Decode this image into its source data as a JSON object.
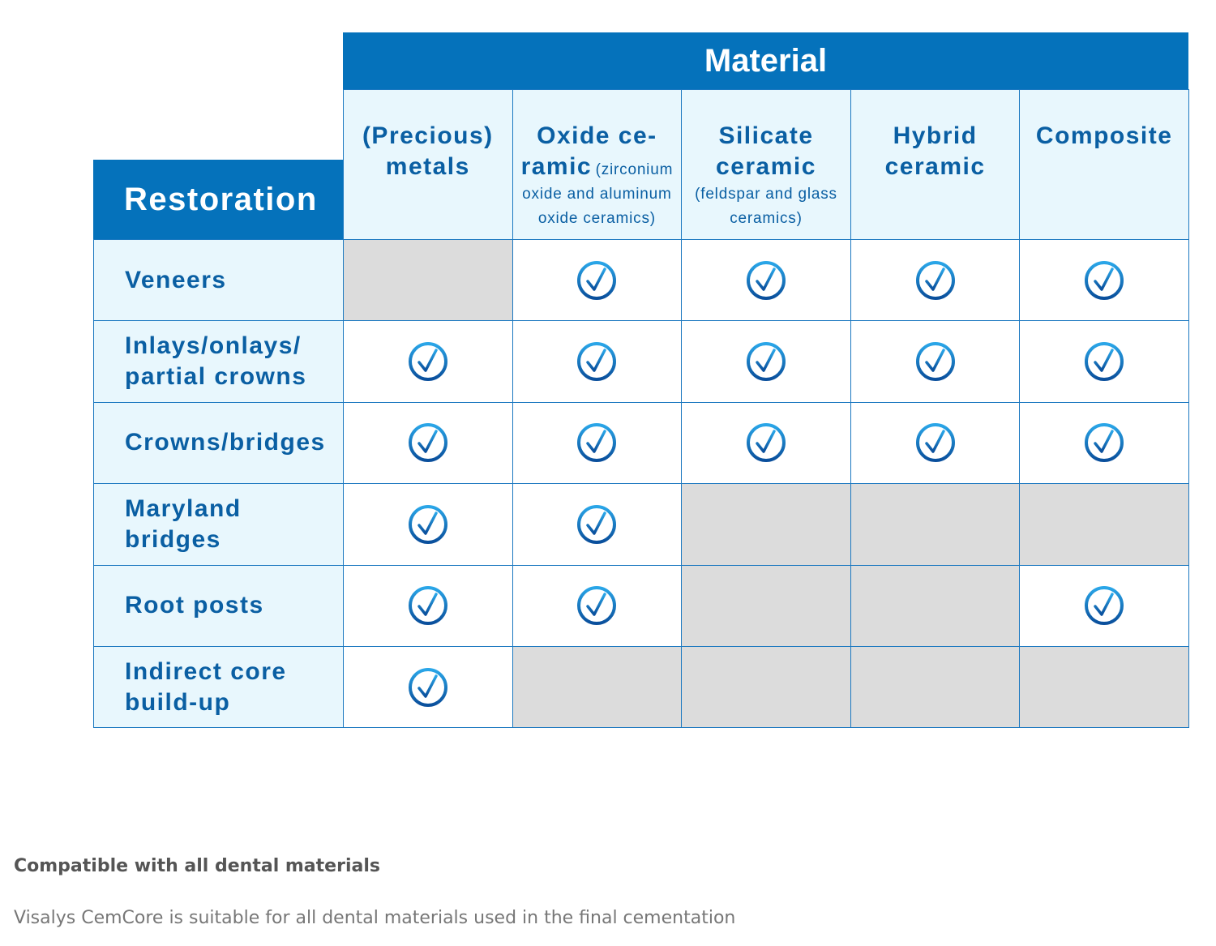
{
  "table": {
    "title": "Material",
    "row_header": "Restoration",
    "columns": [
      {
        "main": "(Precious)\nmetals"
      },
      {
        "main": "Oxide ce-\nramic",
        "sub": "(zirconium oxide and aluminum oxide ceramics)"
      },
      {
        "main": "Silicate\nceramic",
        "sub": "(feldspar and glass ceramics)"
      },
      {
        "main": "Hybrid\nceramic"
      },
      {
        "main": "Composite"
      }
    ],
    "rows": [
      {
        "label": "Veneers",
        "cells": [
          false,
          true,
          true,
          true,
          true
        ]
      },
      {
        "label": "Inlays/onlays/\npartial crowns",
        "cells": [
          true,
          true,
          true,
          true,
          true
        ]
      },
      {
        "label": "Crowns/bridges",
        "cells": [
          true,
          true,
          true,
          true,
          true
        ]
      },
      {
        "label": "Maryland\nbridges",
        "cells": [
          true,
          true,
          false,
          false,
          false
        ]
      },
      {
        "label": "Root posts",
        "cells": [
          true,
          true,
          false,
          false,
          true
        ]
      },
      {
        "label": "Indirect core\nbuild-up",
        "cells": [
          true,
          false,
          false,
          false,
          false
        ]
      }
    ]
  },
  "footer": {
    "heading": "Compatible with all dental materials",
    "text": "Visalys CemCore is suitable for all dental materials used in the final cementation"
  }
}
